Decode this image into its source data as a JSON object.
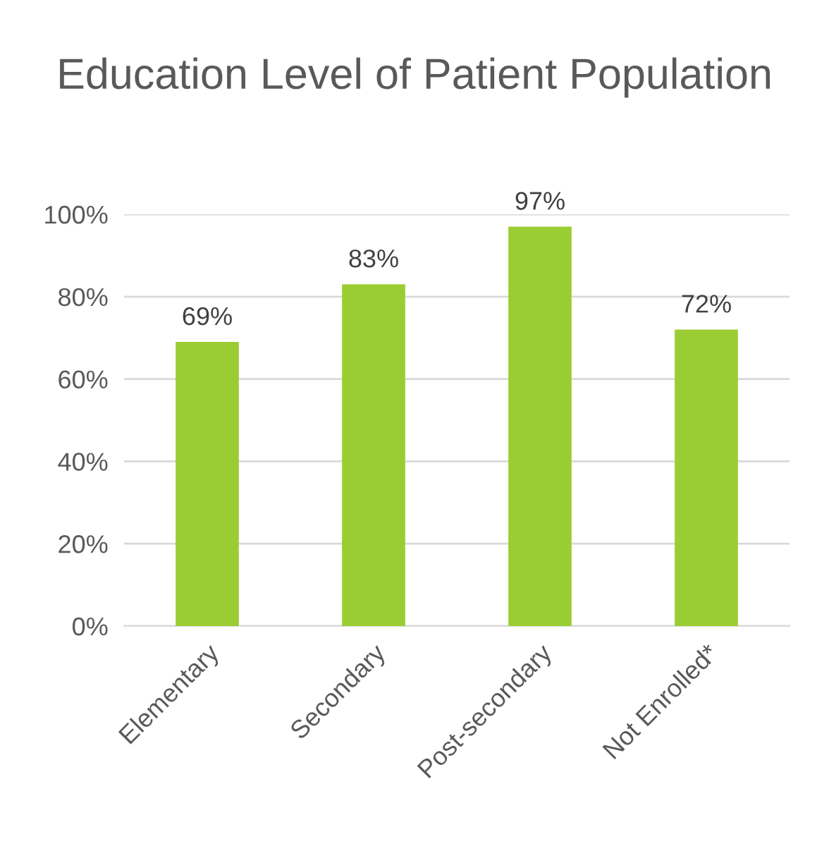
{
  "chart_data": {
    "type": "bar",
    "title": "Education Level of Patient Population",
    "categories": [
      "Elementary",
      "Secondary",
      "Post-secondary",
      "Not Enrolled*"
    ],
    "values": [
      69,
      83,
      97,
      72
    ],
    "value_labels": [
      "69%",
      "83%",
      "97%",
      "72%"
    ],
    "color": "#9acd32",
    "ylim": [
      0,
      100
    ],
    "yticks": [
      {
        "value": 0,
        "label": "0%"
      },
      {
        "value": 20,
        "label": "20%"
      },
      {
        "value": 40,
        "label": "40%"
      },
      {
        "value": 60,
        "label": "60%"
      },
      {
        "value": 80,
        "label": "80%"
      },
      {
        "value": 100,
        "label": "100%"
      }
    ],
    "grid": "y"
  }
}
